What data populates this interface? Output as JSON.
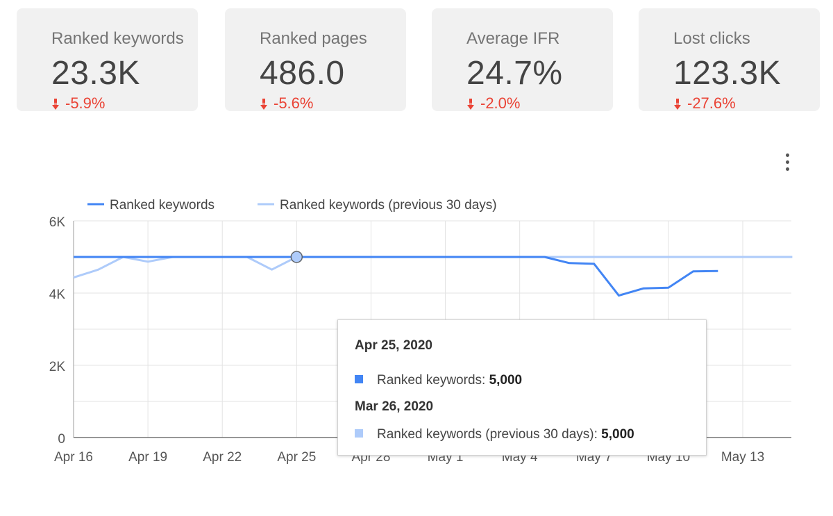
{
  "scorecards": [
    {
      "label": "Ranked keywords",
      "value": "23.3K",
      "delta": "-5.9%"
    },
    {
      "label": "Ranked pages",
      "value": "486.0",
      "delta": "-5.6%"
    },
    {
      "label": "Average IFR",
      "value": "24.7%",
      "delta": "-2.0%"
    },
    {
      "label": "Lost clicks",
      "value": "123.3K",
      "delta": "-27.6%"
    }
  ],
  "colors": {
    "series_current": "#4285f4",
    "series_previous": "#aecbfa",
    "negative": "#ea4335",
    "card_bg": "#f1f1f1"
  },
  "icons": {
    "delta": "down-arrow-icon",
    "menu": "more-vert-icon"
  },
  "tooltip": {
    "date_current": "Apr 25, 2020",
    "row_current_label": "Ranked keywords: ",
    "row_current_value": "5,000",
    "date_previous": "Mar 26, 2020",
    "row_previous_label": "Ranked keywords (previous 30 days): ",
    "row_previous_value": "5,000"
  },
  "chart_data": {
    "type": "line",
    "title": "",
    "xlabel": "",
    "ylabel": "",
    "ylim": [
      0,
      6000
    ],
    "y_ticks": [
      "0",
      "2K",
      "4K",
      "6K"
    ],
    "y_tick_values": [
      0,
      2000,
      4000,
      6000
    ],
    "x_start": "Apr 16",
    "x_tick_labels": [
      "Apr 16",
      "Apr 19",
      "Apr 22",
      "Apr 25",
      "Apr 28",
      "May 1",
      "May 4",
      "May 7",
      "May 10",
      "May 13"
    ],
    "x_tick_days": [
      0,
      3,
      6,
      9,
      12,
      15,
      18,
      21,
      24,
      27
    ],
    "x_domain_days": [
      0,
      29
    ],
    "grid": true,
    "legend_position": "top-left",
    "hover_day": 9,
    "series": [
      {
        "name": "Ranked keywords",
        "color": "#4285f4",
        "values": [
          5000,
          5000,
          5000,
          5000,
          5000,
          5000,
          5000,
          5000,
          5000,
          5000,
          5000,
          5000,
          5000,
          5000,
          5000,
          5000,
          5000,
          5000,
          5000,
          5000,
          4830,
          4810,
          3930,
          4130,
          4150,
          4600,
          4610
        ]
      },
      {
        "name": "Ranked keywords (previous 30 days)",
        "color": "#aecbfa",
        "values": [
          4430,
          4650,
          5000,
          4870,
          5000,
          5000,
          5000,
          5000,
          4650,
          5000,
          5000,
          5000,
          5000,
          5000,
          5000,
          5000,
          5000,
          5000,
          5000,
          5000,
          5000,
          5000,
          5000,
          5000,
          5000,
          5000,
          5000,
          5000,
          5000,
          5000
        ]
      }
    ]
  }
}
